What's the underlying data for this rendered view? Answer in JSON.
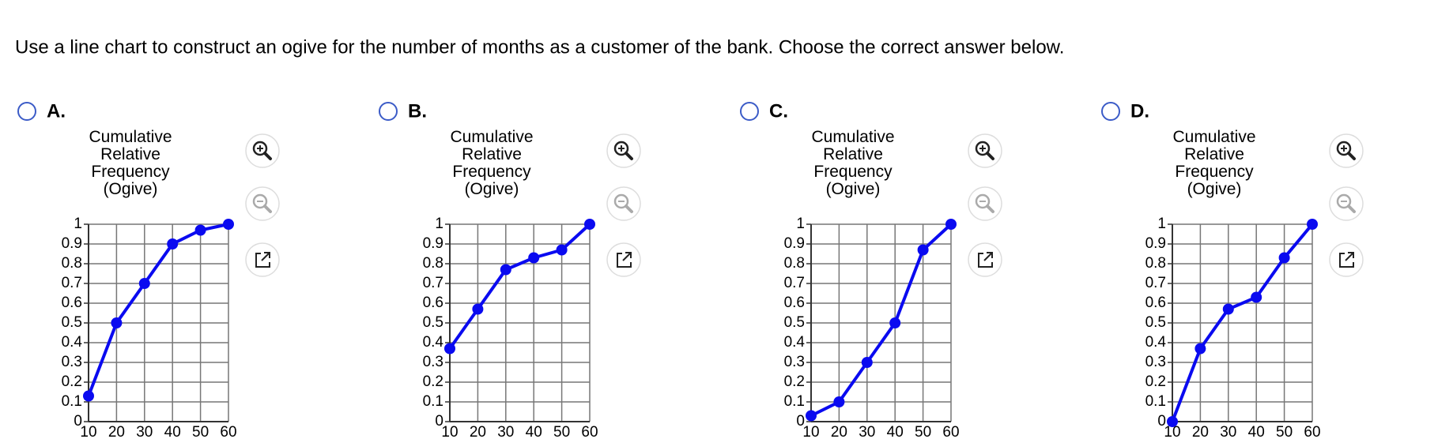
{
  "question": "Use a line chart to construct an ogive for the number of months as a customer of the bank. Choose the correct answer below.",
  "options": [
    {
      "label": "A."
    },
    {
      "label": "B."
    },
    {
      "label": "C."
    },
    {
      "label": "D."
    }
  ],
  "chart_data": [
    {
      "type": "line",
      "title": "Cumulative Relative Frequency (Ogive)",
      "x": [
        10,
        20,
        30,
        40,
        50,
        60
      ],
      "series": [
        {
          "color": "#0a0af0",
          "values": [
            0.13,
            0.5,
            0.7,
            0.9,
            0.97,
            1
          ]
        }
      ],
      "xlim": [
        10,
        60
      ],
      "xticks": [
        10,
        20,
        30,
        40,
        50,
        60
      ],
      "ylim": [
        0,
        1
      ],
      "yticks": [
        0,
        0.1,
        0.2,
        0.3,
        0.4,
        0.5,
        0.6,
        0.7,
        0.8,
        0.9,
        1
      ],
      "grid": true
    },
    {
      "type": "line",
      "title": "Cumulative Relative Frequency (Ogive)",
      "x": [
        10,
        20,
        30,
        40,
        50,
        60
      ],
      "series": [
        {
          "color": "#0a0af0",
          "values": [
            0.37,
            0.57,
            0.77,
            0.83,
            0.87,
            1
          ]
        }
      ],
      "xlim": [
        10,
        60
      ],
      "xticks": [
        10,
        20,
        30,
        40,
        50,
        60
      ],
      "ylim": [
        0,
        1
      ],
      "yticks": [
        0,
        0.1,
        0.2,
        0.3,
        0.4,
        0.5,
        0.6,
        0.7,
        0.8,
        0.9,
        1
      ],
      "grid": true
    },
    {
      "type": "line",
      "title": "Cumulative Relative Frequency (Ogive)",
      "x": [
        10,
        20,
        30,
        40,
        50,
        60
      ],
      "series": [
        {
          "color": "#0a0af0",
          "values": [
            0.03,
            0.1,
            0.3,
            0.5,
            0.87,
            1
          ]
        }
      ],
      "xlim": [
        10,
        60
      ],
      "xticks": [
        10,
        20,
        30,
        40,
        50,
        60
      ],
      "ylim": [
        0,
        1
      ],
      "yticks": [
        0,
        0.1,
        0.2,
        0.3,
        0.4,
        0.5,
        0.6,
        0.7,
        0.8,
        0.9,
        1
      ],
      "grid": true
    },
    {
      "type": "line",
      "title": "Cumulative Relative Frequency (Ogive)",
      "x": [
        10,
        20,
        30,
        40,
        50,
        60
      ],
      "series": [
        {
          "color": "#0a0af0",
          "values": [
            0,
            0.37,
            0.57,
            0.63,
            0.83,
            1
          ]
        }
      ],
      "xlim": [
        10,
        60
      ],
      "xticks": [
        10,
        20,
        30,
        40,
        50,
        60
      ],
      "ylim": [
        0,
        1
      ],
      "yticks": [
        0,
        0.1,
        0.2,
        0.3,
        0.4,
        0.5,
        0.6,
        0.7,
        0.8,
        0.9,
        1
      ],
      "grid": true
    }
  ]
}
